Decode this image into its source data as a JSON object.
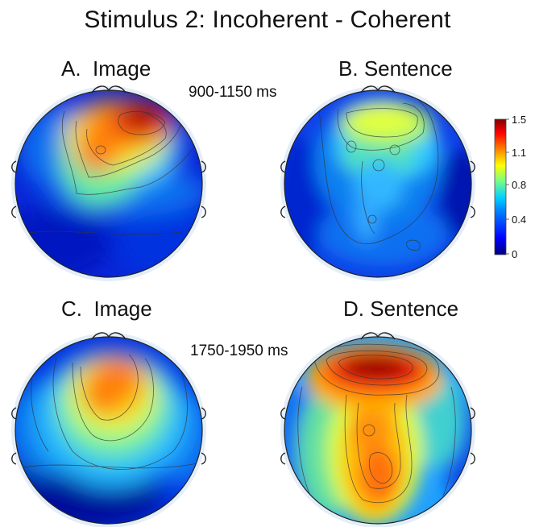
{
  "figure": {
    "title": "Stimulus 2:  Incoherent - Coherent",
    "time_windows": [
      "900-1150 ms",
      "1750-1950 ms"
    ],
    "panels": [
      {
        "letter": "A.",
        "label": "Image",
        "time_window": "900-1150 ms",
        "peak_region": "frontal-right"
      },
      {
        "letter": "B.",
        "label": "Sentence",
        "time_window": "900-1150 ms",
        "peak_region": "frontal-central"
      },
      {
        "letter": "C.",
        "label": "Image",
        "time_window": "1750-1950 ms",
        "peak_region": "frontal-central"
      },
      {
        "letter": "D.",
        "label": "Sentence",
        "time_window": "1750-1950 ms",
        "peak_region": "frontal, extending posterior"
      }
    ],
    "colorbar": {
      "min": 0,
      "max": 1.5,
      "ticks": [
        "1.5",
        "1.1",
        "0.8",
        "0.4",
        "0"
      ],
      "colormap": [
        "#00007f",
        "#0000ff",
        "#0080ff",
        "#00d0ff",
        "#7fff7f",
        "#ffff00",
        "#ff8000",
        "#ff0000",
        "#7f0000"
      ]
    }
  }
}
